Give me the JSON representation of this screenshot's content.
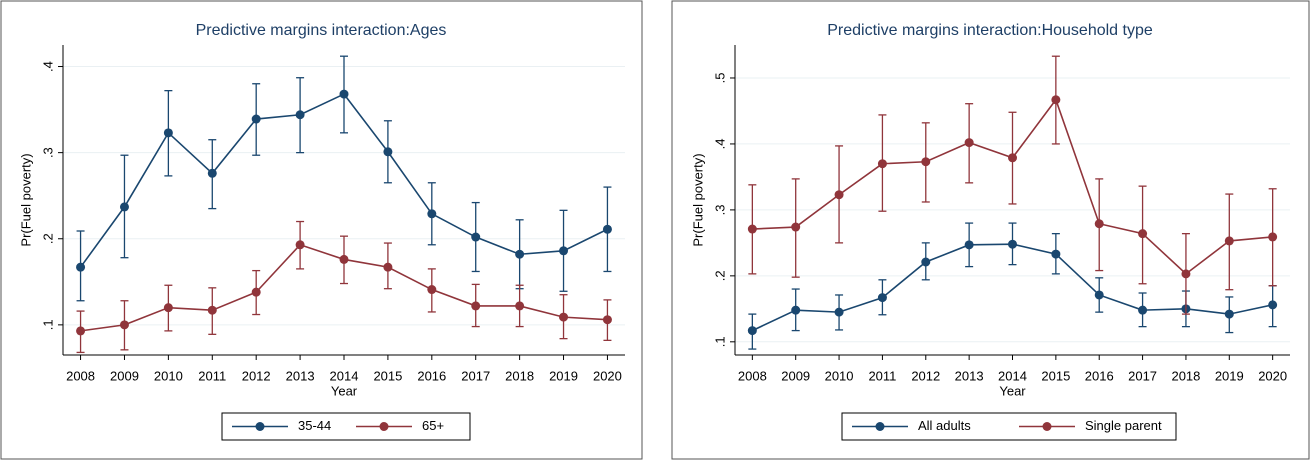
{
  "chart_data": [
    {
      "type": "line",
      "title": "Predictive margins interaction:Ages",
      "x_label": "Year",
      "y_label": "Pr(Fuel poverty)",
      "x": [
        2008,
        2009,
        2010,
        2011,
        2012,
        2013,
        2014,
        2015,
        2016,
        2017,
        2018,
        2019,
        2020
      ],
      "xlim": [
        2007.6,
        2020.4
      ],
      "xticks": [
        2008,
        2009,
        2010,
        2011,
        2012,
        2013,
        2014,
        2015,
        2016,
        2017,
        2018,
        2019,
        2020
      ],
      "ylim": [
        0.065,
        0.425
      ],
      "yticks": [
        {
          "value": 0.1,
          "label": ".1"
        },
        {
          "value": 0.2,
          "label": ".2"
        },
        {
          "value": 0.3,
          "label": ".3"
        },
        {
          "value": 0.4,
          "label": ".4"
        }
      ],
      "grid": true,
      "legend": "bottom",
      "series": [
        {
          "name": "35-44",
          "color": "#1a476f",
          "values": [
            0.167,
            0.237,
            0.323,
            0.276,
            0.339,
            0.344,
            0.368,
            0.301,
            0.229,
            0.202,
            0.182,
            0.186,
            0.211
          ],
          "ci_low": [
            0.128,
            0.178,
            0.273,
            0.235,
            0.297,
            0.3,
            0.323,
            0.265,
            0.193,
            0.162,
            0.142,
            0.139,
            0.162
          ],
          "ci_high": [
            0.209,
            0.297,
            0.372,
            0.315,
            0.38,
            0.387,
            0.412,
            0.337,
            0.265,
            0.242,
            0.222,
            0.233,
            0.26
          ]
        },
        {
          "name": "65+",
          "color": "#90353b",
          "values": [
            0.093,
            0.1,
            0.12,
            0.117,
            0.138,
            0.193,
            0.176,
            0.167,
            0.141,
            0.122,
            0.122,
            0.109,
            0.106
          ],
          "ci_low": [
            0.068,
            0.071,
            0.093,
            0.089,
            0.112,
            0.165,
            0.148,
            0.142,
            0.115,
            0.098,
            0.098,
            0.084,
            0.082
          ],
          "ci_high": [
            0.116,
            0.128,
            0.146,
            0.143,
            0.163,
            0.22,
            0.203,
            0.195,
            0.165,
            0.147,
            0.146,
            0.135,
            0.129
          ]
        }
      ]
    },
    {
      "type": "line",
      "title": "Predictive margins interaction:Household type",
      "x_label": "Year",
      "y_label": "Pr(Fuel poverty)",
      "x": [
        2008,
        2009,
        2010,
        2011,
        2012,
        2013,
        2014,
        2015,
        2016,
        2017,
        2018,
        2019,
        2020
      ],
      "xlim": [
        2007.6,
        2020.4
      ],
      "xticks": [
        2008,
        2009,
        2010,
        2011,
        2012,
        2013,
        2014,
        2015,
        2016,
        2017,
        2018,
        2019,
        2020
      ],
      "ylim": [
        0.08,
        0.55
      ],
      "yticks": [
        {
          "value": 0.1,
          "label": ".1"
        },
        {
          "value": 0.2,
          "label": ".2"
        },
        {
          "value": 0.3,
          "label": ".3"
        },
        {
          "value": 0.4,
          "label": ".4"
        },
        {
          "value": 0.5,
          "label": ".5"
        }
      ],
      "grid": true,
      "legend": "bottom",
      "series": [
        {
          "name": "All adults",
          "color": "#1a476f",
          "values": [
            0.117,
            0.148,
            0.145,
            0.167,
            0.221,
            0.247,
            0.248,
            0.233,
            0.171,
            0.148,
            0.15,
            0.142,
            0.156
          ],
          "ci_low": [
            0.089,
            0.117,
            0.118,
            0.141,
            0.194,
            0.214,
            0.217,
            0.203,
            0.145,
            0.123,
            0.123,
            0.114,
            0.123
          ],
          "ci_high": [
            0.142,
            0.18,
            0.171,
            0.194,
            0.25,
            0.28,
            0.28,
            0.264,
            0.197,
            0.174,
            0.177,
            0.168,
            0.185
          ]
        },
        {
          "name": "Single parent",
          "color": "#90353b",
          "values": [
            0.271,
            0.274,
            0.323,
            0.37,
            0.373,
            0.402,
            0.379,
            0.467,
            0.279,
            0.264,
            0.203,
            0.253,
            0.259
          ],
          "ci_low": [
            0.203,
            0.198,
            0.25,
            0.298,
            0.312,
            0.341,
            0.309,
            0.4,
            0.208,
            0.188,
            0.142,
            0.179,
            0.185
          ],
          "ci_high": [
            0.338,
            0.347,
            0.397,
            0.444,
            0.432,
            0.461,
            0.448,
            0.533,
            0.347,
            0.336,
            0.264,
            0.324,
            0.332
          ]
        }
      ]
    }
  ]
}
